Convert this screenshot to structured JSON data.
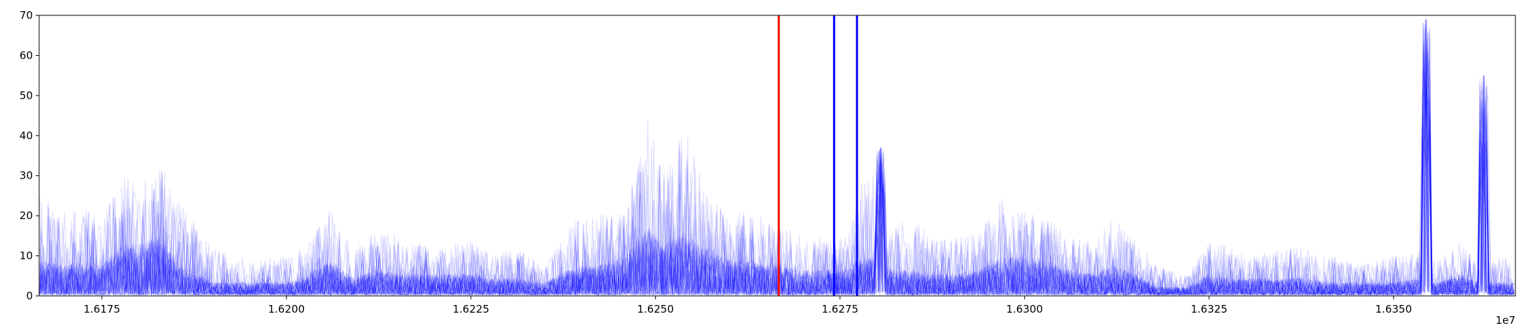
{
  "chart_data": {
    "type": "line",
    "title": "",
    "xlabel": "",
    "ylabel": "",
    "x_offset_label": "1e7",
    "xlim": [
      1.61665,
      1.63665
    ],
    "ylim": [
      0,
      70
    ],
    "x_ticks": [
      1.6175,
      1.62,
      1.6225,
      1.625,
      1.6275,
      1.63,
      1.6325,
      1.635
    ],
    "x_tick_labels": [
      "1.6175",
      "1.6200",
      "1.6225",
      "1.6250",
      "1.6275",
      "1.6300",
      "1.6325",
      "1.6350"
    ],
    "y_ticks": [
      0,
      10,
      20,
      30,
      40,
      50,
      60,
      70
    ],
    "y_tick_labels": [
      "0",
      "10",
      "20",
      "30",
      "40",
      "50",
      "60",
      "70"
    ],
    "grid": false,
    "legend": "none",
    "description_series": "many overlapping semi-transparent blue series",
    "series_color": "#0000ff",
    "series_alpha": 0.12,
    "series_count": 40,
    "activity_envelope": {
      "x": [
        1.6167,
        1.617,
        1.6172,
        1.6175,
        1.6178,
        1.618,
        1.6183,
        1.6185,
        1.6187,
        1.619,
        1.6193,
        1.6196,
        1.62,
        1.6203,
        1.6206,
        1.6209,
        1.6212,
        1.6216,
        1.622,
        1.6225,
        1.6228,
        1.6231,
        1.6235,
        1.6238,
        1.6242,
        1.6246,
        1.6249,
        1.6251,
        1.6254,
        1.6257,
        1.626,
        1.6263,
        1.6266,
        1.627,
        1.6273,
        1.6276,
        1.6279,
        1.6281,
        1.6284,
        1.6287,
        1.629,
        1.6294,
        1.6297,
        1.63,
        1.6303,
        1.6306,
        1.6309,
        1.6312,
        1.6315,
        1.6318,
        1.6322,
        1.6325,
        1.6328,
        1.6331,
        1.6335,
        1.6338,
        1.6342,
        1.6346,
        1.635,
        1.6353,
        1.6356,
        1.6359,
        1.6362,
        1.6365
      ],
      "y_max": [
        25,
        22,
        24,
        20,
        30,
        28,
        33,
        25,
        20,
        12,
        10,
        9,
        10,
        14,
        22,
        12,
        16,
        15,
        12,
        14,
        10,
        12,
        8,
        18,
        20,
        22,
        45,
        30,
        42,
        28,
        20,
        22,
        18,
        16,
        14,
        15,
        36,
        18,
        20,
        16,
        14,
        16,
        25,
        22,
        20,
        15,
        14,
        20,
        14,
        8,
        5,
        14,
        12,
        10,
        12,
        12,
        10,
        8,
        10,
        12,
        10,
        14,
        8,
        10
      ],
      "y_typical": [
        8,
        7,
        8,
        7,
        12,
        12,
        14,
        8,
        6,
        3,
        3,
        3,
        3,
        5,
        8,
        4,
        6,
        5,
        5,
        5,
        4,
        4,
        3,
        6,
        7,
        9,
        16,
        12,
        14,
        11,
        8,
        8,
        7,
        6,
        6,
        6,
        10,
        6,
        6,
        5,
        5,
        6,
        9,
        9,
        8,
        6,
        5,
        7,
        5,
        2,
        2,
        5,
        4,
        4,
        4,
        4,
        3,
        3,
        3,
        4,
        3,
        5,
        3,
        3
      ]
    },
    "sharp_spikes": [
      {
        "x": 1.62805,
        "y": 37
      },
      {
        "x": 1.63544,
        "y": 69
      },
      {
        "x": 1.63622,
        "y": 55
      }
    ],
    "vertical_lines": [
      {
        "x": 1.62667,
        "color": "#ff0000"
      },
      {
        "x": 1.62742,
        "color": "#0000ff"
      },
      {
        "x": 1.62773,
        "color": "#0000ff"
      }
    ]
  }
}
